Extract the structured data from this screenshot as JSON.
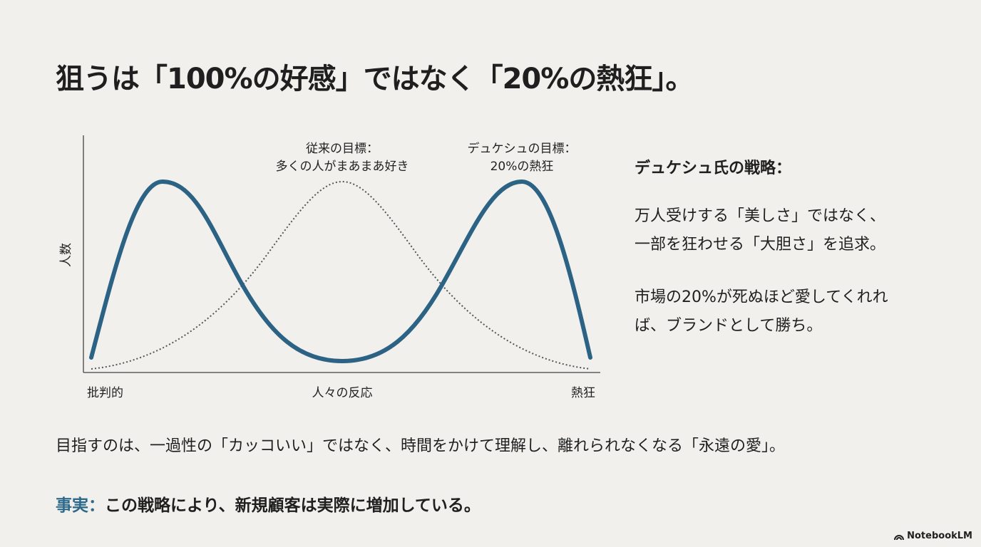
{
  "header": {
    "title": "狙うは「100%の好感」ではなく「20%の熱狂」。"
  },
  "diagram": {
    "y_axis_label": "人数",
    "x_axis_label": "人々の反応",
    "x_left_label": "批判的",
    "x_right_label": "熱狂",
    "annotations": [
      {
        "lines": [
          "従来の目標：",
          "多くの人がまあまあ好き"
        ]
      },
      {
        "lines": [
          "デュケシュの目標：",
          "20%の熱狂"
        ]
      }
    ]
  },
  "side_panel": {
    "heading": "デュケシュ氏の戦略：",
    "paragraphs": [
      [
        "万人受けする「美しさ」ではなく、",
        "一部を狂わせる「大胆さ」を追求。"
      ],
      [
        "市場の20%が死ぬほど愛してくれれ",
        "ば、ブランドとして勝ち。"
      ]
    ]
  },
  "statement": "目指すのは、一過性の「カッコいい」ではなく、時間をかけて理解し、離れられなくなる「永遠の愛」。",
  "fact": {
    "label": "事実：",
    "text": "この戦略により、新規顧客は実際に増加している。"
  },
  "brand": "NotebookLM"
}
